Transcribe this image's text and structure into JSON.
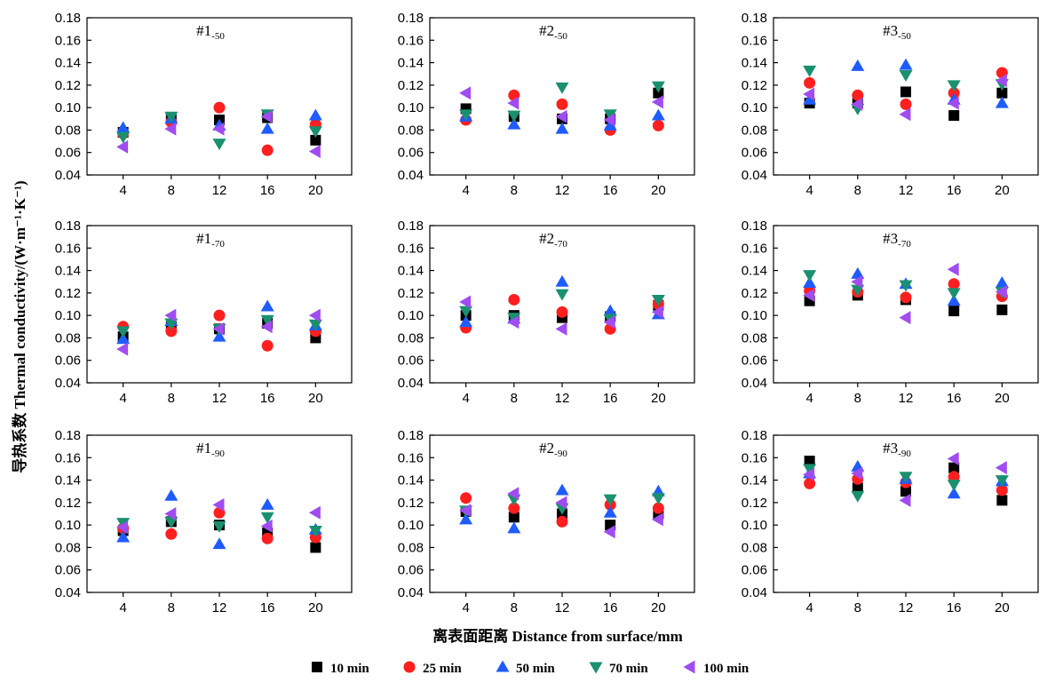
{
  "chart_data": {
    "type": "scatter",
    "ylabel": "导热系数 Thermal conductivity/(W·m⁻¹·K⁻¹)",
    "xlabel": "离表面距离 Distance from surface/mm",
    "x_ticks": [
      4,
      8,
      12,
      16,
      20
    ],
    "y_ticks": [
      "0.04",
      "0.06",
      "0.08",
      "0.10",
      "0.12",
      "0.14",
      "0.16",
      "0.18"
    ],
    "ylim": [
      0.04,
      0.18
    ],
    "xlim": [
      1,
      23
    ],
    "series_names": [
      "10 min",
      "25 min",
      "50 min",
      "70 min",
      "100 min"
    ],
    "series_colors": [
      "#000000",
      "#ff1f1f",
      "#1f5cff",
      "#1a9070",
      "#a04cf0"
    ],
    "series_markers": [
      "square",
      "circle",
      "triangle-up",
      "triangle-down",
      "triangle-left"
    ],
    "panels": [
      {
        "title_main": "#1",
        "title_sub": "-50",
        "x": [
          4,
          8,
          12,
          16,
          20
        ],
        "series": [
          {
            "name": "10 min",
            "values": [
              0.078,
              0.091,
              0.089,
              0.091,
              0.071
            ]
          },
          {
            "name": "25 min",
            "values": [
              0.077,
              0.087,
              0.1,
              0.062,
              0.085
            ]
          },
          {
            "name": "50 min",
            "values": [
              0.082,
              0.09,
              0.084,
              0.081,
              0.093
            ]
          },
          {
            "name": "70 min",
            "values": [
              0.074,
              0.092,
              0.068,
              0.094,
              0.079
            ]
          },
          {
            "name": "100 min",
            "values": [
              0.065,
              0.081,
              0.081,
              0.092,
              0.061
            ]
          }
        ]
      },
      {
        "title_main": "#2",
        "title_sub": "-50",
        "x": [
          4,
          8,
          12,
          16,
          20
        ],
        "series": [
          {
            "name": "10 min",
            "values": [
              0.099,
              0.092,
              0.09,
              0.09,
              0.113
            ]
          },
          {
            "name": "25 min",
            "values": [
              0.089,
              0.111,
              0.103,
              0.08,
              0.084
            ]
          },
          {
            "name": "50 min",
            "values": [
              0.092,
              0.085,
              0.081,
              0.084,
              0.093
            ]
          },
          {
            "name": "70 min",
            "values": [
              0.094,
              0.093,
              0.118,
              0.094,
              0.119
            ]
          },
          {
            "name": "100 min",
            "values": [
              0.113,
              0.104,
              0.092,
              0.089,
              0.105
            ]
          }
        ]
      },
      {
        "title_main": "#3",
        "title_sub": "-50",
        "x": [
          4,
          8,
          12,
          16,
          20
        ],
        "series": [
          {
            "name": "10 min",
            "values": [
              0.104,
              0.104,
              0.114,
              0.093,
              0.113
            ]
          },
          {
            "name": "25 min",
            "values": [
              0.122,
              0.111,
              0.103,
              0.113,
              0.131
            ]
          },
          {
            "name": "50 min",
            "values": [
              0.107,
              0.137,
              0.138,
              0.107,
              0.104
            ]
          },
          {
            "name": "70 min",
            "values": [
              0.133,
              0.099,
              0.129,
              0.12,
              0.121
            ]
          },
          {
            "name": "100 min",
            "values": [
              0.112,
              0.103,
              0.094,
              0.104,
              0.124
            ]
          }
        ]
      },
      {
        "title_main": "#1",
        "title_sub": "-70",
        "x": [
          4,
          8,
          12,
          16,
          20
        ],
        "series": [
          {
            "name": "10 min",
            "values": [
              0.081,
              0.09,
              0.088,
              0.093,
              0.08
            ]
          },
          {
            "name": "25 min",
            "values": [
              0.09,
              0.086,
              0.1,
              0.073,
              0.086
            ]
          },
          {
            "name": "50 min",
            "values": [
              0.079,
              0.095,
              0.081,
              0.108,
              0.091
            ]
          },
          {
            "name": "70 min",
            "values": [
              0.086,
              0.093,
              0.088,
              0.096,
              0.092
            ]
          },
          {
            "name": "100 min",
            "values": [
              0.07,
              0.1,
              0.088,
              0.09,
              0.1
            ]
          }
        ]
      },
      {
        "title_main": "#2",
        "title_sub": "-70",
        "x": [
          4,
          8,
          12,
          16,
          20
        ],
        "series": [
          {
            "name": "10 min",
            "values": [
              0.1,
              0.1,
              0.098,
              0.099,
              0.109
            ]
          },
          {
            "name": "25 min",
            "values": [
              0.089,
              0.114,
              0.103,
              0.088,
              0.11
            ]
          },
          {
            "name": "50 min",
            "values": [
              0.094,
              0.097,
              0.13,
              0.104,
              0.101
            ]
          },
          {
            "name": "70 min",
            "values": [
              0.104,
              0.098,
              0.119,
              0.097,
              0.114
            ]
          },
          {
            "name": "100 min",
            "values": [
              0.112,
              0.094,
              0.088,
              0.094,
              0.103
            ]
          }
        ]
      },
      {
        "title_main": "#3",
        "title_sub": "-70",
        "x": [
          4,
          8,
          12,
          16,
          20
        ],
        "series": [
          {
            "name": "10 min",
            "values": [
              0.113,
              0.118,
              0.114,
              0.104,
              0.105
            ]
          },
          {
            "name": "25 min",
            "values": [
              0.122,
              0.121,
              0.116,
              0.128,
              0.117
            ]
          },
          {
            "name": "50 min",
            "values": [
              0.129,
              0.137,
              0.128,
              0.113,
              0.129
            ]
          },
          {
            "name": "70 min",
            "values": [
              0.136,
              0.123,
              0.127,
              0.12,
              0.121
            ]
          },
          {
            "name": "100 min",
            "values": [
              0.118,
              0.13,
              0.098,
              0.141,
              0.121
            ]
          }
        ]
      },
      {
        "title_main": "#1",
        "title_sub": "-90",
        "x": [
          4,
          8,
          12,
          16,
          20
        ],
        "series": [
          {
            "name": "10 min",
            "values": [
              0.095,
              0.103,
              0.1,
              0.093,
              0.08
            ]
          },
          {
            "name": "25 min",
            "values": [
              0.097,
              0.092,
              0.111,
              0.088,
              0.089
            ]
          },
          {
            "name": "50 min",
            "values": [
              0.089,
              0.126,
              0.083,
              0.118,
              0.096
            ]
          },
          {
            "name": "70 min",
            "values": [
              0.102,
              0.103,
              0.099,
              0.107,
              0.095
            ]
          },
          {
            "name": "100 min",
            "values": [
              0.098,
              0.11,
              0.118,
              0.099,
              0.111
            ]
          }
        ]
      },
      {
        "title_main": "#2",
        "title_sub": "-90",
        "x": [
          4,
          8,
          12,
          16,
          20
        ],
        "series": [
          {
            "name": "10 min",
            "values": [
              0.112,
              0.107,
              0.11,
              0.1,
              0.11
            ]
          },
          {
            "name": "25 min",
            "values": [
              0.124,
              0.115,
              0.103,
              0.118,
              0.115
            ]
          },
          {
            "name": "50 min",
            "values": [
              0.105,
              0.097,
              0.131,
              0.111,
              0.13
            ]
          },
          {
            "name": "70 min",
            "values": [
              0.113,
              0.123,
              0.115,
              0.123,
              0.124
            ]
          },
          {
            "name": "100 min",
            "values": [
              0.113,
              0.128,
              0.12,
              0.094,
              0.105
            ]
          }
        ]
      },
      {
        "title_main": "#3",
        "title_sub": "-90",
        "x": [
          4,
          8,
          12,
          16,
          20
        ],
        "series": [
          {
            "name": "10 min",
            "values": [
              0.157,
              0.133,
              0.13,
              0.151,
              0.122
            ]
          },
          {
            "name": "25 min",
            "values": [
              0.137,
              0.141,
              0.138,
              0.143,
              0.131
            ]
          },
          {
            "name": "50 min",
            "values": [
              0.146,
              0.152,
              0.141,
              0.128,
              0.139
            ]
          },
          {
            "name": "70 min",
            "values": [
              0.15,
              0.126,
              0.143,
              0.136,
              0.14
            ]
          },
          {
            "name": "100 min",
            "values": [
              0.145,
              0.146,
              0.122,
              0.159,
              0.151
            ]
          }
        ]
      }
    ]
  }
}
